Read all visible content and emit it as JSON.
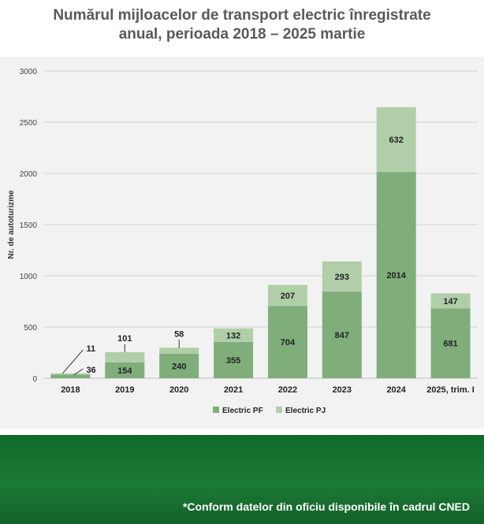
{
  "title_line1": "Numărul mijloacelor de transport electric înregistrate",
  "title_line2": "anual, perioada 2018 – 2025 martie",
  "footnote": "*Conform datelor din oficiu disponibile în cadrul CNED",
  "colors": {
    "pf": "#7fae7b",
    "pj": "#b0cfa9",
    "grid": "#d0d0d0",
    "footer": "#1b7a34"
  },
  "chart_data": {
    "type": "bar",
    "stacked": true,
    "categories": [
      "2018",
      "2019",
      "2020",
      "2021",
      "2022",
      "2023",
      "2024",
      "2025, trim. I"
    ],
    "series": [
      {
        "name": "Electric PF",
        "values": [
          36,
          154,
          240,
          355,
          704,
          847,
          2014,
          681
        ]
      },
      {
        "name": "Electric PJ",
        "values": [
          11,
          101,
          58,
          132,
          207,
          293,
          632,
          147
        ]
      }
    ],
    "ylabel": "Nr. de autoturizme",
    "xlabel": "",
    "ylim": [
      0,
      3000
    ],
    "yticks": [
      0,
      500,
      1000,
      1500,
      2000,
      2500,
      3000
    ],
    "grid": true,
    "legend": "bottom"
  }
}
